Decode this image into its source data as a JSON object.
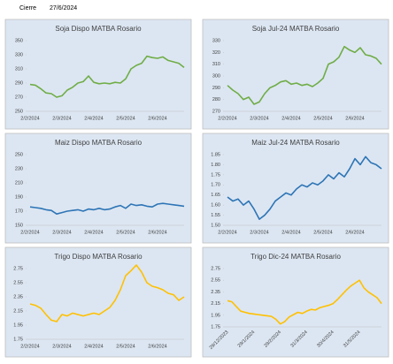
{
  "header": {
    "label": "Cierre",
    "date": "27/6/2024"
  },
  "chart_data": [
    {
      "type": "line",
      "title": "Soja Dispo MATBA Rosario",
      "color": "#70ad47",
      "categories": [
        "2/2/2024",
        null,
        null,
        null,
        null,
        null,
        "2/3/2024",
        null,
        null,
        null,
        null,
        null,
        "2/4/2024",
        null,
        null,
        null,
        null,
        null,
        "2/5/2024",
        null,
        null,
        null,
        null,
        null,
        "2/6/2024",
        null,
        null,
        null,
        null,
        null
      ],
      "values": [
        288,
        287,
        282,
        276,
        275,
        270,
        272,
        280,
        284,
        290,
        292,
        300,
        291,
        289,
        290,
        289,
        291,
        290,
        296,
        310,
        315,
        318,
        328,
        326,
        325,
        327,
        322,
        320,
        318,
        312
      ],
      "ylim": [
        250,
        350
      ],
      "yticks": [
        250,
        270,
        290,
        310,
        330,
        350
      ]
    },
    {
      "type": "line",
      "title": "Soja Jul-24 MATBA Rosario",
      "color": "#70ad47",
      "categories": [
        "2/2/2024",
        null,
        null,
        null,
        null,
        null,
        "2/3/2024",
        null,
        null,
        null,
        null,
        null,
        "2/4/2024",
        null,
        null,
        null,
        null,
        null,
        "2/5/2024",
        null,
        null,
        null,
        null,
        null,
        "2/6/2024",
        null,
        null,
        null,
        null,
        null
      ],
      "values": [
        292,
        288,
        285,
        280,
        282,
        276,
        278,
        285,
        290,
        292,
        295,
        296,
        293,
        294,
        292,
        293,
        291,
        294,
        298,
        310,
        312,
        316,
        325,
        322,
        320,
        324,
        318,
        317,
        315,
        310
      ],
      "ylim": [
        270,
        330
      ],
      "yticks": [
        270,
        280,
        290,
        300,
        310,
        320,
        330
      ]
    },
    {
      "type": "line",
      "title": "Maiz Dispo MATBA Rosario",
      "color": "#2e75b6",
      "categories": [
        "2/2/2024",
        null,
        null,
        null,
        null,
        null,
        "2/3/2024",
        null,
        null,
        null,
        null,
        null,
        "2/4/2024",
        null,
        null,
        null,
        null,
        null,
        "2/5/2024",
        null,
        null,
        null,
        null,
        null,
        "2/6/2024",
        null,
        null,
        null,
        null,
        null
      ],
      "values": [
        176,
        175,
        174,
        172,
        171,
        166,
        168,
        170,
        171,
        172,
        170,
        173,
        172,
        174,
        172,
        173,
        176,
        178,
        174,
        180,
        178,
        179,
        177,
        176,
        180,
        181,
        180,
        179,
        178,
        177
      ],
      "ylim": [
        150,
        250
      ],
      "yticks": [
        150,
        170,
        190,
        210,
        230,
        250
      ]
    },
    {
      "type": "line",
      "title": "Maiz Jul-24 MATBA Rosario",
      "color": "#2e75b6",
      "categories": [
        "2/2/2024",
        null,
        null,
        null,
        null,
        null,
        "2/3/2024",
        null,
        null,
        null,
        null,
        null,
        "2/4/2024",
        null,
        null,
        null,
        null,
        null,
        "2/5/2024",
        null,
        null,
        null,
        null,
        null,
        "2/6/2024",
        null,
        null,
        null,
        null,
        null
      ],
      "values": [
        1.64,
        1.62,
        1.63,
        1.6,
        1.62,
        1.58,
        1.53,
        1.55,
        1.58,
        1.62,
        1.64,
        1.66,
        1.65,
        1.68,
        1.7,
        1.69,
        1.71,
        1.7,
        1.72,
        1.75,
        1.73,
        1.76,
        1.74,
        1.78,
        1.83,
        1.8,
        1.84,
        1.81,
        1.8,
        1.78
      ],
      "ylim": [
        1.5,
        1.85
      ],
      "yticks": [
        {
          "value": 1.5,
          "label": "1.50"
        },
        1.55,
        {
          "value": 1.6,
          "label": "1.60"
        },
        1.65,
        {
          "value": 1.7,
          "label": "1.70"
        },
        1.75,
        {
          "value": 1.8,
          "label": "1.80"
        },
        1.85
      ]
    },
    {
      "type": "line",
      "title": "Trigo Dispo MATBA Rosario",
      "color": "#ffc000",
      "categories": [
        "2/2/2024",
        null,
        null,
        null,
        null,
        null,
        "2/3/2024",
        null,
        null,
        null,
        null,
        null,
        "2/4/2024",
        null,
        null,
        null,
        null,
        null,
        "2/5/2024",
        null,
        null,
        null,
        null,
        null,
        "2/6/2024",
        null,
        null,
        null,
        null,
        null
      ],
      "values": [
        2.25,
        2.23,
        2.19,
        2.1,
        2.02,
        2.0,
        2.1,
        2.08,
        2.12,
        2.1,
        2.08,
        2.1,
        2.12,
        2.1,
        2.15,
        2.2,
        2.3,
        2.45,
        2.65,
        2.72,
        2.8,
        2.7,
        2.55,
        2.5,
        2.48,
        2.45,
        2.4,
        2.38,
        2.3,
        2.35
      ],
      "ylim": [
        1.75,
        2.75
      ],
      "yticks": [
        1.75,
        1.95,
        2.15,
        2.35,
        2.55,
        2.75
      ]
    },
    {
      "type": "line",
      "title": "Trigo Dic-24 MATBA Rosario",
      "color": "#ffc000",
      "categories": [
        "29/12/2023",
        null,
        null,
        null,
        null,
        null,
        "29/1/2024",
        null,
        null,
        null,
        null,
        null,
        "29/2/2024",
        null,
        null,
        null,
        null,
        null,
        "31/3/2024",
        null,
        null,
        null,
        null,
        null,
        "30/4/2024",
        null,
        null,
        null,
        null,
        null,
        "31/5/2024",
        null,
        null,
        null,
        null,
        null
      ],
      "values": [
        2.2,
        2.18,
        2.1,
        2.02,
        2.0,
        1.98,
        1.97,
        1.96,
        1.95,
        1.94,
        1.93,
        1.88,
        1.8,
        1.84,
        1.92,
        1.96,
        2.0,
        1.98,
        2.02,
        2.05,
        2.04,
        2.08,
        2.1,
        2.12,
        2.15,
        2.22,
        2.3,
        2.38,
        2.45,
        2.5,
        2.55,
        2.42,
        2.35,
        2.3,
        2.25,
        2.15
      ],
      "ylim": [
        1.75,
        2.75
      ],
      "yticks": [
        1.75,
        1.95,
        2.15,
        2.35,
        2.55,
        2.75
      ]
    }
  ]
}
